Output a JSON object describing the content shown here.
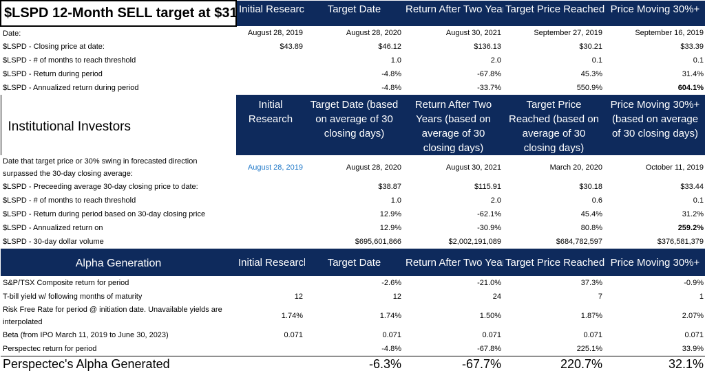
{
  "section1": {
    "title": "$LSPD 12-Month SELL target at $31",
    "cols": [
      "Initial Research",
      "Target Date",
      "Return After Two Years",
      "Target Price Reached",
      "Price Moving 30%+"
    ],
    "rows": [
      {
        "label": "Date:",
        "vals": [
          "August 28, 2019",
          "August 28, 2020",
          "August 30, 2021",
          "September 27, 2019",
          "September 16, 2019"
        ]
      },
      {
        "label": "$LSPD - Closing price at date:",
        "vals": [
          "$43.89",
          "$46.12",
          "$136.13",
          "$30.21",
          "$33.39"
        ]
      },
      {
        "label": "$LSPD - # of months to reach threshold",
        "vals": [
          "",
          "1.0",
          "2.0",
          "0.1",
          "0.1"
        ]
      },
      {
        "label": "$LSPD - Return during period",
        "vals": [
          "",
          "-4.8%",
          "-67.8%",
          "45.3%",
          "31.4%"
        ]
      },
      {
        "label": "$LSPD - Annualized return during period",
        "vals": [
          "",
          "-4.8%",
          "-33.7%",
          "550.9%",
          "604.1%"
        ]
      }
    ]
  },
  "section2": {
    "title": "Institutional Investors",
    "cols": [
      "Initial Research",
      "Target Date (based on average of 30 closing days)",
      "Return After Two Years (based on average of 30 closing days)",
      "Target Price Reached (based on average of 30 closing days)",
      "Price Moving 30%+ (based on average of 30 closing days)"
    ],
    "rows": [
      {
        "label": "Date that target price or 30% swing in forecasted direction surpassed the 30-day closing average:",
        "vals": [
          "August 28, 2019",
          "August 28, 2020",
          "August 30, 2021",
          "March 20, 2020",
          "October 11, 2019"
        ]
      },
      {
        "label": "$LSPD - Preceeding average 30-day closing price to date:",
        "vals": [
          "",
          "$38.87",
          "$115.91",
          "$30.18",
          "$33.44"
        ]
      },
      {
        "label": "$LSPD - # of months to reach threshold",
        "vals": [
          "",
          "1.0",
          "2.0",
          "0.6",
          "0.1"
        ]
      },
      {
        "label": "$LSPD - Return during period based on 30-day closing price",
        "vals": [
          "",
          "12.9%",
          "-62.1%",
          "45.4%",
          "31.2%"
        ]
      },
      {
        "label": "$LSPD - Annualized return on",
        "vals": [
          "",
          "12.9%",
          "-30.9%",
          "80.8%",
          "259.2%"
        ]
      },
      {
        "label": "$LSPD - 30-day dollar volume",
        "vals": [
          "",
          "$695,601,866",
          "$2,002,191,089",
          "$684,782,597",
          "$376,581,379"
        ]
      }
    ]
  },
  "section3": {
    "title": "Alpha Generation",
    "cols": [
      "Initial Research",
      "Target Date",
      "Return After Two Years",
      "Target Price Reached",
      "Price Moving 30%+"
    ],
    "rows": [
      {
        "label": "S&P/TSX Composite return for period",
        "vals": [
          "",
          "-2.6%",
          "-21.0%",
          "37.3%",
          "-0.9%"
        ]
      },
      {
        "label": "T-bill yield w/ following months of maturity",
        "vals": [
          "12",
          "12",
          "24",
          "7",
          "1"
        ]
      },
      {
        "label": "Risk Free Rate for period @ initiation date. Unavailable yields are interpolated",
        "vals": [
          "1.74%",
          "1.74%",
          "1.50%",
          "1.87%",
          "2.07%"
        ]
      },
      {
        "label": "Beta (from IPO March 11, 2019 to June 30, 2023)",
        "vals": [
          "0.071",
          "0.071",
          "0.071",
          "0.071",
          "0.071"
        ]
      },
      {
        "label": "Perspectec return for period",
        "vals": [
          "",
          "-4.8%",
          "-67.8%",
          "225.1%",
          "33.9%"
        ]
      }
    ],
    "final": {
      "label": "Perspectec's Alpha Generated",
      "vals": [
        "",
        "-6.3%",
        "-67.7%",
        "220.7%",
        "32.1%"
      ]
    }
  }
}
